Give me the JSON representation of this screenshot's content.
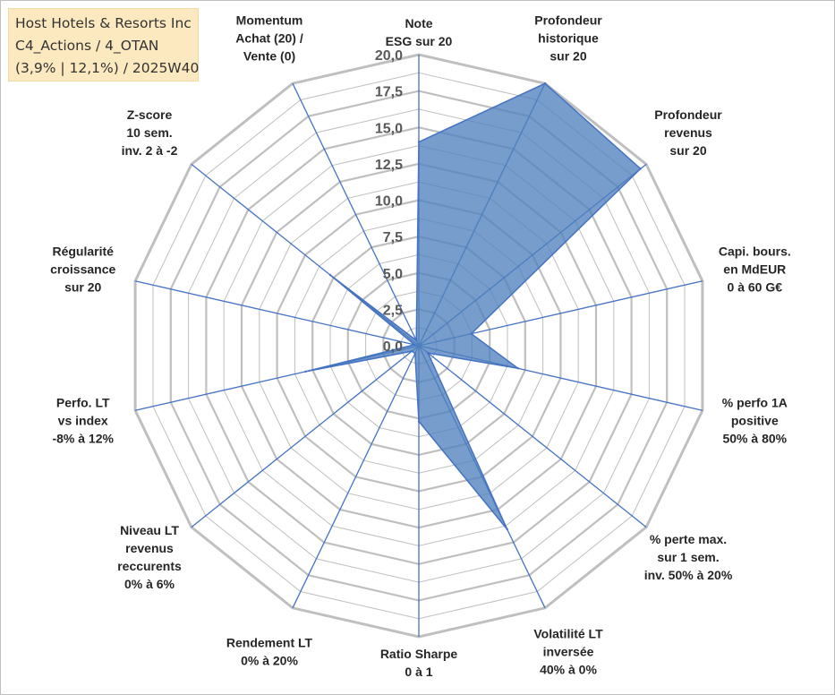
{
  "header": {
    "line1": "Host Hotels & Resorts Inc",
    "line2": "C4_Actions / 4_OTAN",
    "line3": "(3,9% | 12,1%) / 2025W40"
  },
  "chart_data": {
    "type": "radar",
    "title": "Host Hotels & Resorts Inc",
    "rlim": [
      0,
      20
    ],
    "tick_values": [
      0,
      2.5,
      5,
      7.5,
      10,
      12.5,
      15,
      17.5,
      20
    ],
    "tick_labels": [
      "0,0",
      "2,5",
      "5,0",
      "7,5",
      "10,0",
      "12,5",
      "15,0",
      "17,5",
      "20,0"
    ],
    "axes": [
      [
        "Note",
        "ESG sur 20"
      ],
      [
        "Profondeur",
        "historique",
        "sur 20"
      ],
      [
        "Profondeur",
        "revenus",
        "sur 20"
      ],
      [
        "Capi. bours.",
        "en MdEUR",
        "0 à 60 G€"
      ],
      [
        "% perfo 1A",
        "positive",
        "50% à 80%"
      ],
      [
        "% perte max.",
        "sur 1 sem.",
        "inv. 50% à 20%"
      ],
      [
        "Volatilité LT",
        "inversée",
        "40% à 0%"
      ],
      [
        "Ratio Sharpe",
        "0 à 1"
      ],
      [
        "Rendement LT",
        "0% à 20%"
      ],
      [
        "Niveau LT",
        "revenus",
        "reccurents",
        "0% à 6%"
      ],
      [
        "Perfo. LT",
        "vs index",
        "-8% à 12%"
      ],
      [
        "Régularité",
        "croissance",
        "sur 20"
      ],
      [
        "Z-score",
        "10 sem.",
        "inv. 2 à -2"
      ],
      [
        "Momentum",
        "Achat (20) /",
        "Vente (0)"
      ]
    ],
    "series": [
      {
        "name": "Host Hotels & Resorts Inc",
        "color": "#4f81bd",
        "values": [
          14,
          20,
          19.5,
          3.7,
          7,
          0.8,
          14,
          5.2,
          0.6,
          0.6,
          8,
          0.3,
          7.8,
          0.4
        ]
      }
    ],
    "grid_color": "#bfbfbf",
    "spoke_color": "#4472c4"
  }
}
